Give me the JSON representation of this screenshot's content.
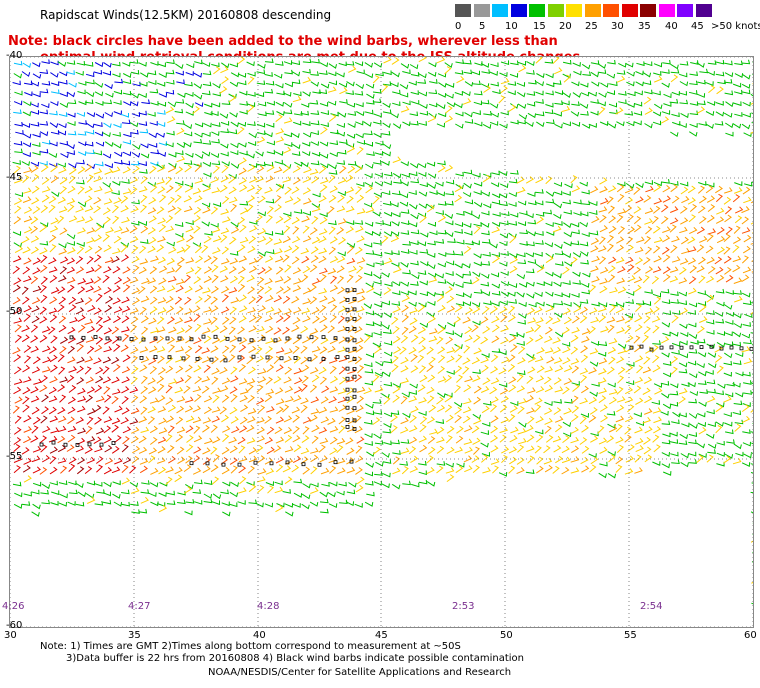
{
  "title": "Rapidscat Winds(12.5KM) 20160808 descending",
  "note_line1": "Note: black circles have been added to the wind barbs, wherever less than",
  "note_line2": "optimal wind retrieval conditions are met due to the ISS altitude changes.",
  "legend": {
    "labels": [
      "0",
      "5",
      "10",
      "15",
      "20",
      "25",
      "30",
      "35",
      "40",
      "45",
      ">50 knots"
    ],
    "colors": [
      "#555555",
      "#999999",
      "#00bfff",
      "#0000e0",
      "#00c000",
      "#7fd000",
      "#ffe000",
      "#ffa000",
      "#ff5000",
      "#e00000",
      "#8b0000",
      "#ff00ff",
      "#8000ff",
      "#500090"
    ]
  },
  "map": {
    "lat_labels": [
      "-40",
      "-45",
      "-50",
      "-55",
      "-60"
    ],
    "lon_labels": [
      "30",
      "35",
      "40",
      "45",
      "50",
      "55",
      "60"
    ],
    "times": [
      "4:26",
      "4:27",
      "4:28",
      "2:53",
      "2:54"
    ]
  },
  "footer": {
    "line1": "Note: 1) Times are GMT 2)Times along bottom correspond to measurement at ~50S",
    "line2": "3)Data buffer is 22 hrs from 20160808 4) Black wind barbs indicate possible contamination",
    "line3": "NOAA/NESDIS/Center for Satellite Applications and Research"
  }
}
